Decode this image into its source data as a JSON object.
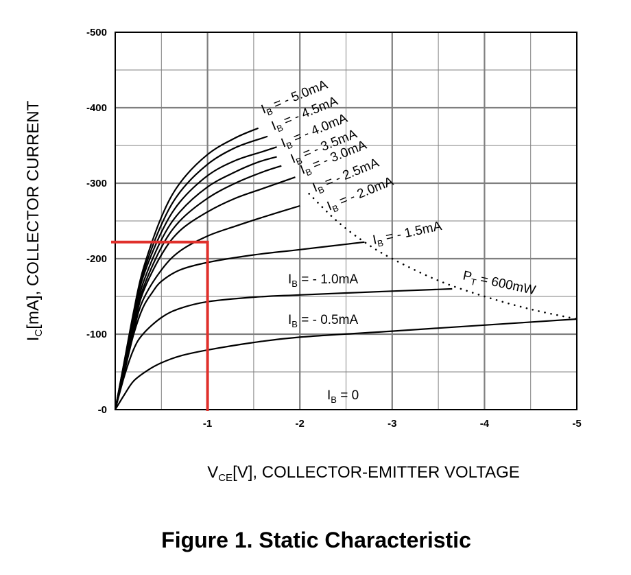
{
  "figure_caption": "Figure 1. Static Characteristic",
  "colors": {
    "grid": "#7f7f7f",
    "axes": "#000000",
    "curves": "#000000",
    "marker": "#e0302b"
  },
  "chart_data": {
    "type": "line",
    "title": "",
    "xlabel": {
      "prefix": "V",
      "subscript": "CE",
      "suffix": "[V], COLLECTOR-EMITTER VOLTAGE"
    },
    "ylabel": {
      "prefix": "I",
      "subscript": "C",
      "suffix": "[mA], COLLECTOR CURRENT"
    },
    "xlim": [
      0,
      -5
    ],
    "ylim": [
      0,
      -500
    ],
    "grid": true,
    "x_minor_step": -0.5,
    "y_minor_step": -50,
    "x_ticks": [
      {
        "value": -1,
        "label": "-1"
      },
      {
        "value": -2,
        "label": "-2"
      },
      {
        "value": -3,
        "label": "-3"
      },
      {
        "value": -4,
        "label": "-4"
      },
      {
        "value": -5,
        "label": "-5"
      }
    ],
    "y_ticks": [
      {
        "value": 0,
        "label": "-0"
      },
      {
        "value": -100,
        "label": "-100"
      },
      {
        "value": -200,
        "label": "-200"
      },
      {
        "value": -300,
        "label": "-300"
      },
      {
        "value": -400,
        "label": "-400"
      },
      {
        "value": -500,
        "label": "-500"
      }
    ],
    "series": [
      {
        "name": "IB = -0.5mA",
        "label": {
          "prefix": "I",
          "subscript": "B",
          "suffix": " = - 0.5mA"
        },
        "x": [
          0,
          -0.1,
          -0.2,
          -0.35,
          -0.5,
          -0.7,
          -1.0,
          -1.5,
          -2.0,
          -3.0,
          -4.0,
          -5.0
        ],
        "y": [
          0,
          -20,
          -38,
          -52,
          -62,
          -71,
          -79,
          -89,
          -96,
          -104,
          -112,
          -120
        ]
      },
      {
        "name": "IB = -1.0mA",
        "label": {
          "prefix": "I",
          "subscript": "B",
          "suffix": " = - 1.0mA"
        },
        "x": [
          0,
          -0.1,
          -0.2,
          -0.3,
          -0.5,
          -0.7,
          -1.0,
          -1.5,
          -2.0,
          -3.0,
          -3.65
        ],
        "y": [
          0,
          -45,
          -80,
          -100,
          -122,
          -134,
          -143,
          -149,
          -152,
          -157,
          -160
        ]
      },
      {
        "name": "IB = -1.5mA",
        "label": {
          "prefix": "I",
          "subscript": "B",
          "suffix": " = - 1.5mA"
        },
        "x": [
          0,
          -0.1,
          -0.2,
          -0.3,
          -0.4,
          -0.5,
          -0.7,
          -1.0,
          -1.5,
          -2.0,
          -2.7
        ],
        "y": [
          0,
          -50,
          -100,
          -135,
          -155,
          -170,
          -185,
          -195,
          -205,
          -212,
          -222
        ]
      },
      {
        "name": "IB = -2.0mA",
        "label": {
          "prefix": "I",
          "subscript": "B",
          "suffix": " = - 2.0mA"
        },
        "x": [
          0,
          -0.1,
          -0.2,
          -0.3,
          -0.5,
          -0.7,
          -1.0,
          -1.3,
          -1.6,
          -2.0
        ],
        "y": [
          0,
          -55,
          -105,
          -145,
          -185,
          -210,
          -230,
          -243,
          -255,
          -270
        ]
      },
      {
        "name": "IB = -2.5mA",
        "label": {
          "prefix": "I",
          "subscript": "B",
          "suffix": " = - 2.5mA"
        },
        "x": [
          0,
          -0.1,
          -0.2,
          -0.3,
          -0.5,
          -0.7,
          -1.0,
          -1.3,
          -1.6,
          -1.95
        ],
        "y": [
          0,
          -58,
          -110,
          -155,
          -205,
          -237,
          -262,
          -280,
          -293,
          -308
        ]
      },
      {
        "name": "IB = -3.0mA",
        "label": {
          "prefix": "I",
          "subscript": "B",
          "suffix": " = - 3.0mA"
        },
        "x": [
          0,
          -0.1,
          -0.2,
          -0.3,
          -0.5,
          -0.7,
          -1.0,
          -1.3,
          -1.6,
          -1.8
        ],
        "y": [
          0,
          -60,
          -115,
          -160,
          -215,
          -250,
          -280,
          -300,
          -315,
          -323
        ]
      },
      {
        "name": "IB = -3.5mA",
        "label": {
          "prefix": "I",
          "subscript": "B",
          "suffix": " = - 3.5mA"
        },
        "x": [
          0,
          -0.1,
          -0.2,
          -0.3,
          -0.5,
          -0.7,
          -1.0,
          -1.3,
          -1.55,
          -1.75
        ],
        "y": [
          0,
          -62,
          -120,
          -167,
          -225,
          -262,
          -295,
          -315,
          -328,
          -335
        ]
      },
      {
        "name": "IB = -4.0mA",
        "label": {
          "prefix": "I",
          "subscript": "B",
          "suffix": " = - 4.0mA"
        },
        "x": [
          0,
          -0.1,
          -0.2,
          -0.3,
          -0.5,
          -0.7,
          -1.0,
          -1.3,
          -1.6,
          -1.75
        ],
        "y": [
          0,
          -63,
          -125,
          -175,
          -235,
          -275,
          -310,
          -330,
          -342,
          -348
        ]
      },
      {
        "name": "IB = -4.5mA",
        "label": {
          "prefix": "I",
          "subscript": "B",
          "suffix": " = - 4.5mA"
        },
        "x": [
          0,
          -0.1,
          -0.2,
          -0.3,
          -0.5,
          -0.7,
          -1.0,
          -1.3,
          -1.6,
          -1.65
        ],
        "y": [
          0,
          -64,
          -128,
          -180,
          -245,
          -288,
          -325,
          -347,
          -360,
          -362
        ]
      },
      {
        "name": "IB = -5.0mA",
        "label": {
          "prefix": "I",
          "subscript": "B",
          "suffix": " = - 5.0mA"
        },
        "x": [
          0,
          -0.1,
          -0.2,
          -0.3,
          -0.5,
          -0.7,
          -1.0,
          -1.3,
          -1.55
        ],
        "y": [
          0,
          -65,
          -130,
          -185,
          -255,
          -300,
          -338,
          -360,
          -373
        ]
      }
    ],
    "ib_zero_label": {
      "prefix": "I",
      "subscript": "B",
      "suffix": " = 0"
    },
    "power_limit": {
      "label": {
        "prefix": "P",
        "subscript": "T",
        "suffix": " = 600mW"
      },
      "x": [
        -2.1,
        -2.4,
        -2.7,
        -3.0,
        -3.5,
        -4.0,
        -4.5,
        -5.0
      ],
      "y": [
        -286,
        -250,
        -222,
        -200,
        -171,
        -150,
        -133,
        -120
      ]
    },
    "operating_point": {
      "x": -1,
      "y": -222
    }
  }
}
